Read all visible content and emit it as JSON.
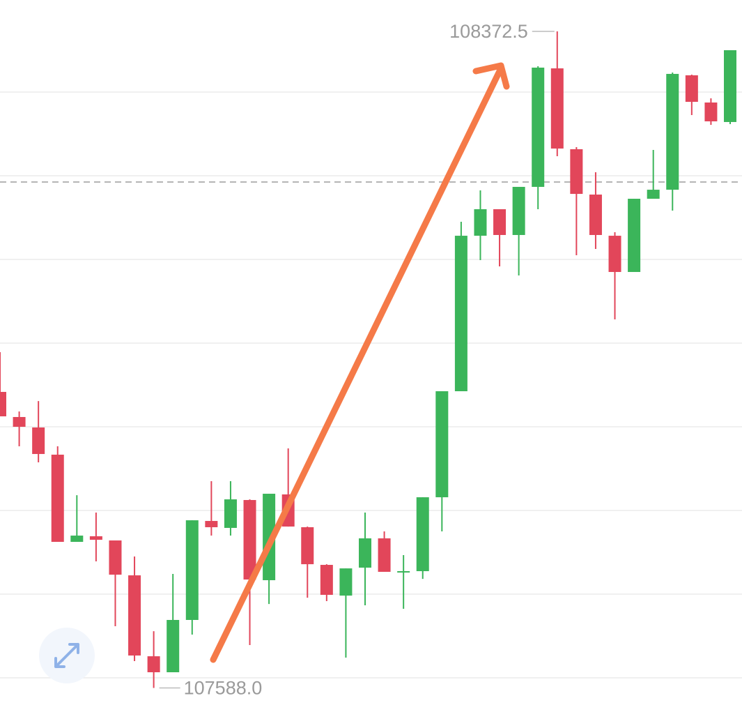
{
  "chart_data": {
    "type": "candlestick",
    "up_color": "#3bb55a",
    "down_color": "#e2465a",
    "ylim": [
      107559.2,
      108410
    ],
    "gridlines": [
      108300,
      108200,
      108100,
      108000,
      107900,
      107800,
      107700,
      107600
    ],
    "price_line": 108192.5,
    "max_label": 108372.5,
    "min_label": {
      "value": 107588,
      "label": "107588.0"
    },
    "open": [
      107941.7,
      107911.7,
      107899.2,
      107866.7,
      107762.5,
      107769.2,
      107764.2,
      107722.5,
      107625.8,
      107606.7,
      107669.2,
      107787.5,
      107779.2,
      107812.5,
      107716.7,
      107819.2,
      107780,
      107735,
      107698.3,
      107731.7,
      107766.7,
      107726.7,
      107727.5,
      107815.8,
      107942.5,
      108128.3,
      108160,
      108129.2,
      108186.7,
      108328.3,
      108231.7,
      108177.5,
      108128.3,
      108085,
      108172.5,
      108183.3,
      108320,
      108287.5,
      108264.2
    ],
    "high": [
      107989.2,
      107918.3,
      107930.8,
      107876.7,
      107818.3,
      107797.5,
      107764.2,
      107745,
      107655.8,
      107724.2,
      107788.3,
      107835,
      107835,
      107813.3,
      107820,
      107874.2,
      107780.8,
      107735.8,
      107730.8,
      107797.5,
      107775,
      107746.7,
      107815.8,
      107942.5,
      108145,
      108182.5,
      108160,
      108186.7,
      108330.8,
      108372.5,
      108234.2,
      108204.2,
      108132.5,
      108172.5,
      108230.8,
      108323.3,
      108320.8,
      108292.5,
      108350
    ],
    "low": [
      107912.5,
      107876.7,
      107857.5,
      107762.5,
      107762.5,
      107739.2,
      107661.7,
      107620,
      107588,
      107606.7,
      107651.7,
      107770,
      107770,
      107639.2,
      107688.3,
      107780.8,
      107695.8,
      107691.7,
      107624.2,
      107686.7,
      107726.7,
      107682.5,
      107718.3,
      107775,
      107942.5,
      108099.2,
      108091.7,
      108080.8,
      108160,
      108223.3,
      108105,
      108112.5,
      108028.3,
      108085,
      108172.5,
      108158.3,
      108272.5,
      108260.8,
      108261.7
    ],
    "close": [
      107912.5,
      107900,
      107867.5,
      107762.5,
      107770,
      107765,
      107723.3,
      107626.7,
      107606.7,
      107669.2,
      107788.3,
      107780,
      107813.3,
      107717.5,
      107820,
      107780.8,
      107735.8,
      107699.2,
      107730.8,
      107766.7,
      107726.7,
      107727.5,
      107815.8,
      107942.5,
      108128.3,
      108160,
      108129.2,
      108186.7,
      108329.2,
      108232.5,
      108178.3,
      108129.2,
      108085,
      108172.5,
      108183.3,
      108321.7,
      108288.3,
      108265,
      108350
    ]
  }
}
